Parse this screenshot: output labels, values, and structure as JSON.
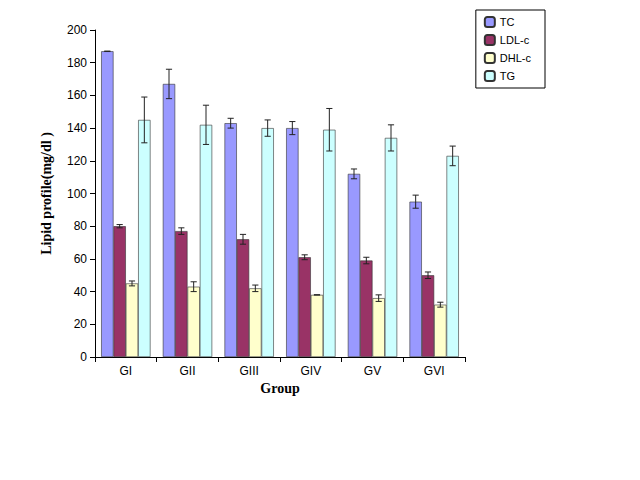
{
  "chart_data": {
    "type": "bar",
    "x_label": "Group",
    "y_label": "Lipid profile(mg/dl )",
    "categories": [
      "GI",
      "GII",
      "GIII",
      "GIV",
      "GV",
      "GVI"
    ],
    "series": [
      {
        "name": "TC",
        "color": "#9999ff",
        "values": [
          187,
          167,
          143,
          140,
          112,
          95
        ],
        "errors": [
          0,
          9,
          3,
          4,
          3,
          4
        ]
      },
      {
        "name": "LDL-c",
        "color": "#993366",
        "values": [
          80,
          77,
          72,
          61,
          59,
          50
        ],
        "errors": [
          1,
          2,
          3,
          1.5,
          2,
          2
        ]
      },
      {
        "name": "DHL-c",
        "color": "#ffffcc",
        "values": [
          45,
          43,
          42,
          38,
          36,
          32
        ],
        "errors": [
          1.5,
          3,
          2,
          0,
          2,
          1.5
        ]
      },
      {
        "name": "TG",
        "color": "#ccffff",
        "values": [
          145,
          142,
          140,
          139,
          134,
          123
        ],
        "errors": [
          14,
          12,
          5,
          13,
          8,
          6
        ]
      }
    ],
    "ylim": [
      0,
      200
    ],
    "yticks": [
      0,
      20,
      40,
      60,
      80,
      100,
      120,
      140,
      160,
      180,
      200
    ],
    "grid": false,
    "legend": "top-right"
  }
}
